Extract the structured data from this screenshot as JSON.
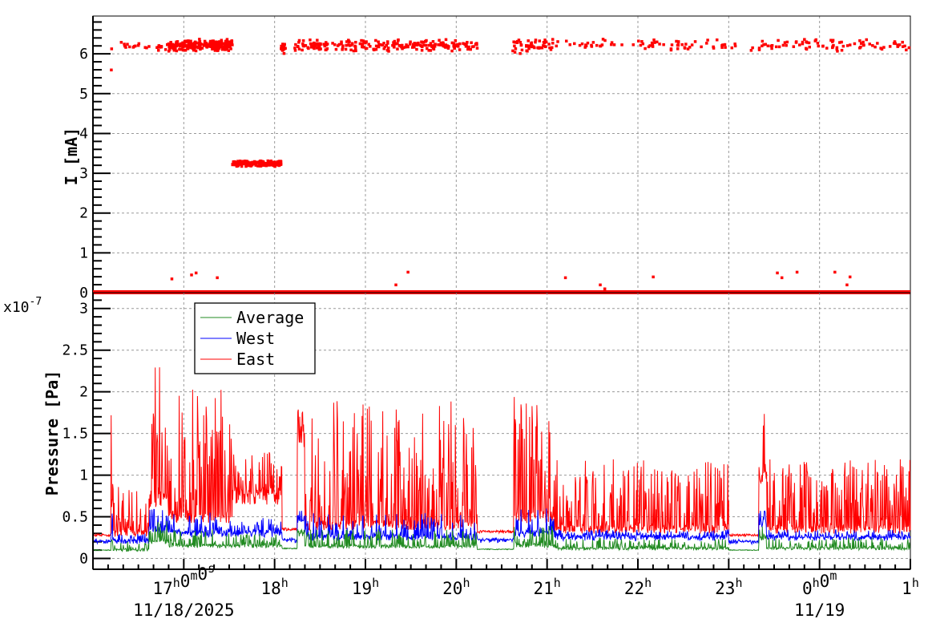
{
  "chart_data": [
    {
      "type": "scatter",
      "ylabel": "I [mA]",
      "ylim": [
        0,
        6.95
      ],
      "xlim": [
        "16:00",
        "01:00"
      ],
      "y_ticks": [
        "0",
        "1",
        "2",
        "3",
        "4",
        "5",
        "6"
      ],
      "grid": true,
      "color": "#ff0000",
      "segments": [
        {
          "start": "16:00",
          "end": "01:00",
          "level": 0,
          "spread": 0.03,
          "points": "dense"
        },
        {
          "start": "16:12",
          "end": "16:50",
          "level": 6.2,
          "spread": 0.08,
          "points": "sparse"
        },
        {
          "start": "16:50",
          "end": "17:32",
          "level": 6.22,
          "spread": 0.08,
          "points": "dense"
        },
        {
          "start": "17:32",
          "end": "18:05",
          "level": 3.25,
          "spread": 0.04,
          "points": "dense"
        },
        {
          "start": "18:04",
          "end": "18:07",
          "level": 6.15,
          "spread": 0.08,
          "points": "dense"
        },
        {
          "start": "18:13",
          "end": "20:14",
          "level": 6.22,
          "spread": 0.08,
          "points": "medium"
        },
        {
          "start": "20:37",
          "end": "21:05",
          "level": 6.2,
          "spread": 0.1,
          "points": "medium"
        },
        {
          "start": "21:05",
          "end": "01:00",
          "level": 6.22,
          "spread": 0.08,
          "points": "sparse"
        }
      ],
      "outliers": [
        {
          "t": "16:12",
          "v": 5.6
        },
        {
          "t": "16:52",
          "v": 0.35
        },
        {
          "t": "17:05",
          "v": 0.45
        },
        {
          "t": "17:08",
          "v": 0.5
        },
        {
          "t": "17:22",
          "v": 0.38
        },
        {
          "t": "19:20",
          "v": 0.2
        },
        {
          "t": "19:28",
          "v": 0.52
        },
        {
          "t": "21:12",
          "v": 0.38
        },
        {
          "t": "21:35",
          "v": 0.2
        },
        {
          "t": "21:38",
          "v": 0.1
        },
        {
          "t": "22:10",
          "v": 0.4
        },
        {
          "t": "23:32",
          "v": 0.5
        },
        {
          "t": "23:35",
          "v": 0.38
        },
        {
          "t": "23:45",
          "v": 0.52
        },
        {
          "t": "00:10",
          "v": 0.52
        },
        {
          "t": "00:18",
          "v": 0.2
        },
        {
          "t": "00:20",
          "v": 0.4
        }
      ]
    },
    {
      "type": "line",
      "ylabel": "Pressure [Pa]",
      "y_multiplier": "x10",
      "y_multiplier_exp": "-7",
      "ylim": [
        -0.13,
        3.19
      ],
      "xlim": [
        "16:00",
        "01:00"
      ],
      "y_ticks": [
        "0",
        "0.5",
        "1",
        "1.5",
        "2",
        "2.5",
        "3"
      ],
      "grid": true,
      "legend_position": "top-left",
      "series": [
        {
          "name": "Average",
          "color": "#228b22"
        },
        {
          "name": "West",
          "color": "#0000ff"
        },
        {
          "name": "East",
          "color": "#ff0000"
        }
      ],
      "segments": [
        {
          "start": "16:00",
          "end": "16:12",
          "east": [
            0.28,
            0.28
          ],
          "west": [
            0.2,
            0.22
          ],
          "average": [
            0.1,
            0.1
          ]
        },
        {
          "start": "16:12",
          "end": "16:13",
          "east": [
            0.7,
            3.0
          ],
          "west": [
            0.3,
            0.55
          ],
          "average": [
            0.2,
            0.45
          ]
        },
        {
          "start": "16:13",
          "end": "16:37",
          "east": [
            0.3,
            0.9
          ],
          "west": [
            0.2,
            0.3
          ],
          "average": [
            0.1,
            0.2
          ]
        },
        {
          "start": "16:37",
          "end": "16:50",
          "east": [
            0.7,
            2.3
          ],
          "west": [
            0.35,
            0.6
          ],
          "average": [
            0.2,
            0.45
          ]
        },
        {
          "start": "16:50",
          "end": "17:32",
          "east": [
            0.5,
            2.05
          ],
          "west": [
            0.3,
            0.55
          ],
          "average": [
            0.15,
            0.35
          ]
        },
        {
          "start": "17:32",
          "end": "18:05",
          "east": [
            0.75,
            1.3
          ],
          "west": [
            0.3,
            0.5
          ],
          "average": [
            0.15,
            0.3
          ]
        },
        {
          "start": "18:05",
          "end": "18:15",
          "east": [
            0.35,
            0.35
          ],
          "west": [
            0.22,
            0.25
          ],
          "average": [
            0.12,
            0.12
          ]
        },
        {
          "start": "18:15",
          "end": "18:20",
          "east": [
            1.5,
            1.8
          ],
          "west": [
            0.45,
            0.6
          ],
          "average": [
            0.3,
            0.35
          ]
        },
        {
          "start": "18:20",
          "end": "20:14",
          "east": [
            0.4,
            1.9
          ],
          "west": [
            0.25,
            0.55
          ],
          "average": [
            0.14,
            0.35
          ]
        },
        {
          "start": "20:14",
          "end": "20:38",
          "east": [
            0.32,
            0.32
          ],
          "west": [
            0.22,
            0.24
          ],
          "average": [
            0.11,
            0.11
          ]
        },
        {
          "start": "20:38",
          "end": "21:05",
          "east": [
            0.5,
            1.95
          ],
          "west": [
            0.3,
            0.6
          ],
          "average": [
            0.15,
            0.4
          ]
        },
        {
          "start": "21:05",
          "end": "23:00",
          "east": [
            0.35,
            1.2
          ],
          "west": [
            0.25,
            0.35
          ],
          "average": [
            0.12,
            0.25
          ]
        },
        {
          "start": "23:00",
          "end": "23:20",
          "east": [
            0.28,
            0.28
          ],
          "west": [
            0.2,
            0.22
          ],
          "average": [
            0.1,
            0.1
          ]
        },
        {
          "start": "23:20",
          "end": "23:25",
          "east": [
            1.0,
            2.0
          ],
          "west": [
            0.4,
            0.65
          ],
          "average": [
            0.25,
            0.4
          ]
        },
        {
          "start": "23:25",
          "end": "01:00",
          "east": [
            0.35,
            1.2
          ],
          "west": [
            0.25,
            0.35
          ],
          "average": [
            0.12,
            0.25
          ]
        }
      ]
    }
  ],
  "x_axis": {
    "ticks": [
      {
        "t": "17:00",
        "parts": [
          [
            "17",
            "h"
          ],
          [
            "0",
            "m"
          ],
          [
            "0",
            "s"
          ]
        ],
        "date": "11/18/2025"
      },
      {
        "t": "18:00",
        "parts": [
          [
            "18",
            "h"
          ]
        ]
      },
      {
        "t": "19:00",
        "parts": [
          [
            "19",
            "h"
          ]
        ]
      },
      {
        "t": "20:00",
        "parts": [
          [
            "20",
            "h"
          ]
        ]
      },
      {
        "t": "21:00",
        "parts": [
          [
            "21",
            "h"
          ]
        ]
      },
      {
        "t": "22:00",
        "parts": [
          [
            "22",
            "h"
          ]
        ]
      },
      {
        "t": "23:00",
        "parts": [
          [
            "23",
            "h"
          ]
        ]
      },
      {
        "t": "00:00",
        "parts": [
          [
            "0",
            "h"
          ],
          [
            "0",
            "m"
          ]
        ],
        "date": "11/19"
      },
      {
        "t": "01:00",
        "parts": [
          [
            "1",
            "h"
          ]
        ]
      }
    ]
  }
}
